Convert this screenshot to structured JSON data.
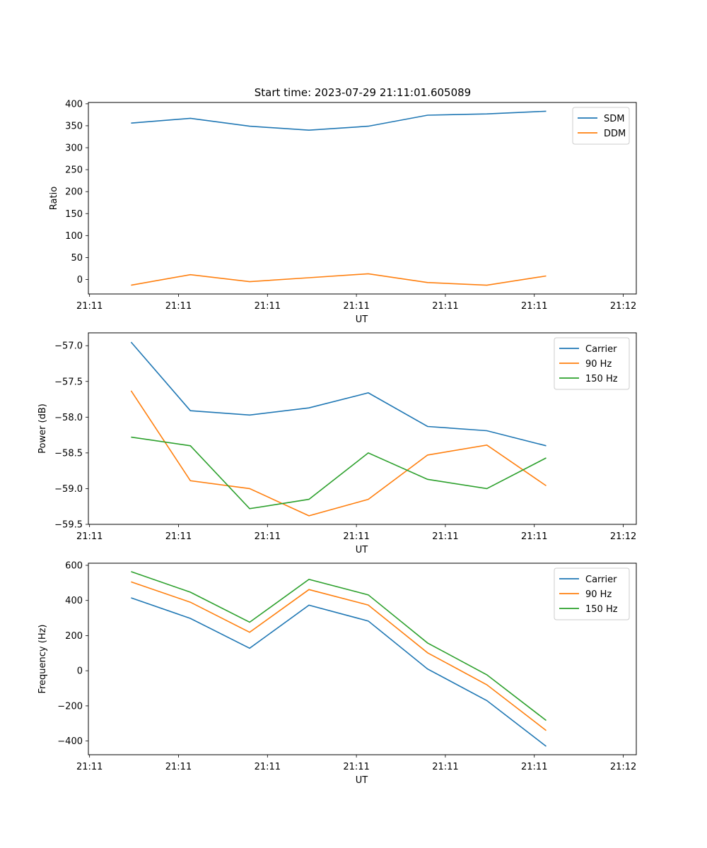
{
  "figure_title": "Start time: 2023-07-29 21:11:01.605089",
  "chart_data": [
    {
      "type": "line",
      "title": "Start time: 2023-07-29 21:11:01.605089",
      "xlabel": "UT",
      "ylabel": "Ratio",
      "xlim": [
        -0.72,
        8.52
      ],
      "ylim": [
        -33,
        403
      ],
      "xtick_positions": [
        -0.7,
        0.8,
        2.3,
        3.8,
        5.3,
        6.8,
        8.3
      ],
      "xtick_labels": [
        "21:11",
        "21:11",
        "21:11",
        "21:11",
        "21:11",
        "21:11",
        "21:12"
      ],
      "ytick_values": [
        0,
        50,
        100,
        150,
        200,
        250,
        300,
        350,
        400
      ],
      "ytick_labels": [
        "0",
        "50",
        "100",
        "150",
        "200",
        "250",
        "300",
        "350",
        "400"
      ],
      "legend_position": "upper right",
      "x": [
        0,
        1,
        2,
        3,
        4,
        5,
        6,
        7
      ],
      "series": [
        {
          "name": "SDM",
          "color": "#1f77b4",
          "values": [
            356,
            367,
            349,
            340,
            349,
            374,
            377,
            383
          ]
        },
        {
          "name": "DDM",
          "color": "#ff7f0e",
          "values": [
            -13,
            11,
            -5,
            4,
            13,
            -7,
            -13,
            8
          ]
        }
      ]
    },
    {
      "type": "line",
      "title": "",
      "xlabel": "UT",
      "ylabel": "Power (dB)",
      "xlim": [
        -0.72,
        8.52
      ],
      "ylim": [
        -59.5,
        -56.82
      ],
      "xtick_positions": [
        -0.7,
        0.8,
        2.3,
        3.8,
        5.3,
        6.8,
        8.3
      ],
      "xtick_labels": [
        "21:11",
        "21:11",
        "21:11",
        "21:11",
        "21:11",
        "21:11",
        "21:12"
      ],
      "ytick_values": [
        -59.5,
        -59.0,
        -58.5,
        -58.0,
        -57.5,
        -57.0
      ],
      "ytick_labels": [
        "−59.5",
        "−59.0",
        "−58.5",
        "−58.0",
        "−57.5",
        "−57.0"
      ],
      "legend_position": "upper right",
      "x": [
        0,
        1,
        2,
        3,
        4,
        5,
        6,
        7
      ],
      "series": [
        {
          "name": "Carrier",
          "color": "#1f77b4",
          "values": [
            -56.95,
            -57.91,
            -57.97,
            -57.87,
            -57.66,
            -58.13,
            -58.19,
            -58.4
          ]
        },
        {
          "name": "90 Hz",
          "color": "#ff7f0e",
          "values": [
            -57.63,
            -58.89,
            -59.0,
            -59.38,
            -59.15,
            -58.53,
            -58.39,
            -58.96
          ]
        },
        {
          "name": "150 Hz",
          "color": "#2ca02c",
          "values": [
            -58.28,
            -58.4,
            -59.28,
            -59.15,
            -58.5,
            -58.87,
            -59.0,
            -58.57
          ]
        }
      ]
    },
    {
      "type": "line",
      "title": "",
      "xlabel": "UT",
      "ylabel": "Frequency (Hz)",
      "xlim": [
        -0.72,
        8.52
      ],
      "ylim": [
        -478,
        612
      ],
      "xtick_positions": [
        -0.7,
        0.8,
        2.3,
        3.8,
        5.3,
        6.8,
        8.3
      ],
      "xtick_labels": [
        "21:11",
        "21:11",
        "21:11",
        "21:11",
        "21:11",
        "21:11",
        "21:12"
      ],
      "ytick_values": [
        -400,
        -200,
        0,
        200,
        400,
        600
      ],
      "ytick_labels": [
        "−400",
        "−200",
        "0",
        "200",
        "400",
        "600"
      ],
      "legend_position": "upper right",
      "x": [
        0,
        1,
        2,
        3,
        4,
        5,
        6,
        7
      ],
      "series": [
        {
          "name": "Carrier",
          "color": "#1f77b4",
          "values": [
            415,
            298,
            128,
            373,
            283,
            10,
            -170,
            -430
          ]
        },
        {
          "name": "90 Hz",
          "color": "#ff7f0e",
          "values": [
            506,
            390,
            219,
            462,
            374,
            102,
            -80,
            -340
          ]
        },
        {
          "name": "150 Hz",
          "color": "#2ca02c",
          "values": [
            564,
            447,
            276,
            520,
            432,
            158,
            -23,
            -283
          ]
        }
      ]
    }
  ]
}
